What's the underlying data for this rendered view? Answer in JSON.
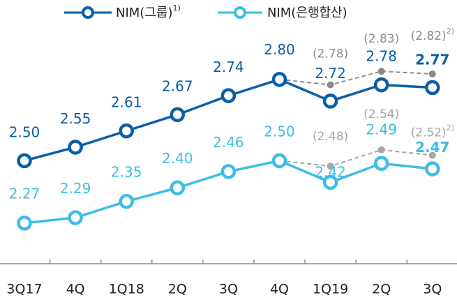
{
  "chart_data": {
    "type": "line",
    "categories": [
      "3Q17",
      "4Q",
      "1Q18",
      "2Q",
      "3Q",
      "4Q",
      "1Q19",
      "2Q",
      "3Q"
    ],
    "ylim": [
      2.12,
      2.99
    ],
    "series": [
      {
        "name": "NIM(그룹)",
        "name_note": "1)",
        "color": "#0b5ea8",
        "values": [
          2.5,
          2.55,
          2.61,
          2.67,
          2.74,
          2.8,
          2.72,
          2.78,
          2.77
        ],
        "value_labels": [
          "2.50",
          "2.55",
          "2.61",
          "2.67",
          "2.74",
          "2.80",
          "2.72",
          "2.78",
          "2.77"
        ]
      },
      {
        "name": "NIM(은행합산)",
        "color": "#3dbde6",
        "values": [
          2.27,
          2.29,
          2.35,
          2.4,
          2.46,
          2.5,
          2.42,
          2.49,
          2.47
        ],
        "value_labels": [
          "2.27",
          "2.29",
          "2.35",
          "2.40",
          "2.46",
          "2.50",
          "2.42",
          "2.49",
          "2.47"
        ]
      },
      {
        "color": "#8c8c8c",
        "dashed": true,
        "values": [
          null,
          null,
          null,
          null,
          null,
          2.8,
          2.78,
          2.83,
          2.82
        ],
        "value_labels": [
          null,
          null,
          null,
          null,
          null,
          null,
          "(2.78)",
          "(2.83)",
          "(2.82)"
        ],
        "value_label_notes": [
          null,
          null,
          null,
          null,
          null,
          null,
          null,
          null,
          "2)"
        ]
      },
      {
        "color": "#a6a6a6",
        "dashed": true,
        "values": [
          null,
          null,
          null,
          null,
          null,
          2.5,
          2.48,
          2.54,
          2.52
        ],
        "value_labels": [
          null,
          null,
          null,
          null,
          null,
          null,
          "(2.48)",
          "(2.54)",
          "(2.52)"
        ],
        "value_label_notes": [
          null,
          null,
          null,
          null,
          null,
          null,
          null,
          null,
          "2)"
        ]
      }
    ]
  }
}
